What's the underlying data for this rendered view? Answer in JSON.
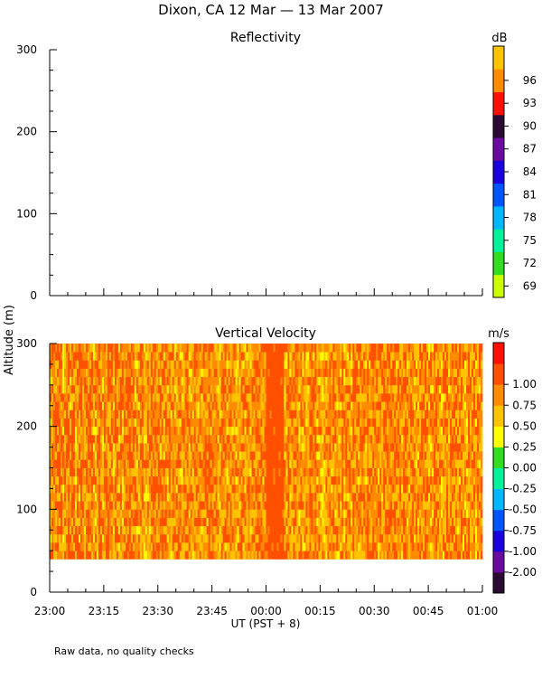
{
  "page_title": "Dixon, CA 12 Mar — 13 Mar 2007",
  "footnote": "Raw data, no quality checks",
  "chart_data": [
    {
      "type": "heatmap",
      "title": "Reflectivity",
      "ylabel": "Altitude (m)",
      "xlabel": "UT  (PST + 8)",
      "x_range": [
        "23:00",
        "01:00"
      ],
      "ylim": [
        0,
        300
      ],
      "y_ticks": [
        0,
        100,
        200,
        300
      ],
      "data": [],
      "colorbar": {
        "unit": "dB",
        "ticks": [
          69,
          72,
          75,
          78,
          81,
          84,
          87,
          90,
          93,
          96
        ],
        "colors": [
          "#ccff00",
          "#33dd22",
          "#00f29a",
          "#00b8ff",
          "#0055ff",
          "#1a00dd",
          "#6a0aa0",
          "#2b0b32",
          "#ff1000",
          "#ff8c00",
          "#ffc400"
        ]
      }
    },
    {
      "type": "heatmap",
      "title": "Vertical Velocity",
      "ylabel": "Altitude (m)",
      "xlabel": "UT  (PST + 8)",
      "x_ticks": [
        "23:00",
        "23:15",
        "23:30",
        "23:45",
        "00:00",
        "00:15",
        "00:30",
        "00:45",
        "01:00"
      ],
      "ylim": [
        0,
        300
      ],
      "y_ticks": [
        0,
        100,
        200,
        300
      ],
      "data_altitude_range": [
        40,
        300
      ],
      "data_value_range": [
        0.25,
        1.25
      ],
      "dominant_range": [
        0.5,
        1.25
      ],
      "uniform_band": {
        "time_range": [
          "00:00",
          "00:05"
        ],
        "value": 1.1
      },
      "colorbar": {
        "unit": "m/s",
        "ticks": [
          "-2.00",
          "-1.00",
          "-0.75",
          "-0.50",
          "-0.25",
          "0.00",
          "0.25",
          "0.50",
          "0.75",
          "1.00"
        ],
        "colors": [
          "#2b0b32",
          "#6a0aa0",
          "#1a00dd",
          "#0055ff",
          "#00b8ff",
          "#00f29a",
          "#33dd22",
          "#ffff00",
          "#ffc400",
          "#ff8c00",
          "#ff5000",
          "#ff1000"
        ]
      }
    }
  ]
}
